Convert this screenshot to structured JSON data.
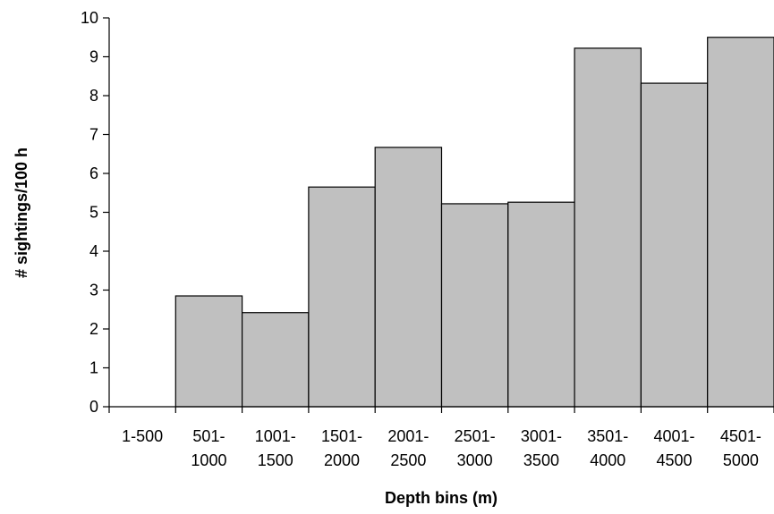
{
  "chart_data": {
    "type": "bar",
    "title": "",
    "xlabel": "Depth bins (m)",
    "ylabel": "# sightings/100 h",
    "categories": [
      [
        "1-500"
      ],
      [
        "501-",
        "1000"
      ],
      [
        "1001-",
        "1500"
      ],
      [
        "1501-",
        "2000"
      ],
      [
        "2001-",
        "2500"
      ],
      [
        "2501-",
        "3000"
      ],
      [
        "3001-",
        "3500"
      ],
      [
        "3501-",
        "4000"
      ],
      [
        "4001-",
        "4500"
      ],
      [
        "4501-",
        "5000"
      ]
    ],
    "values": [
      0,
      2.85,
      2.42,
      5.65,
      6.67,
      5.22,
      5.26,
      9.22,
      8.32,
      9.5
    ],
    "ylim": [
      0,
      10
    ],
    "yticks": [
      "0",
      "1",
      "2",
      "3",
      "4",
      "5",
      "6",
      "7",
      "8",
      "9",
      "10"
    ],
    "grid": false,
    "legend": "none",
    "colors": {
      "bar_fill": "#c0c0c0",
      "bar_stroke": "#000000",
      "axis": "#000000"
    }
  }
}
